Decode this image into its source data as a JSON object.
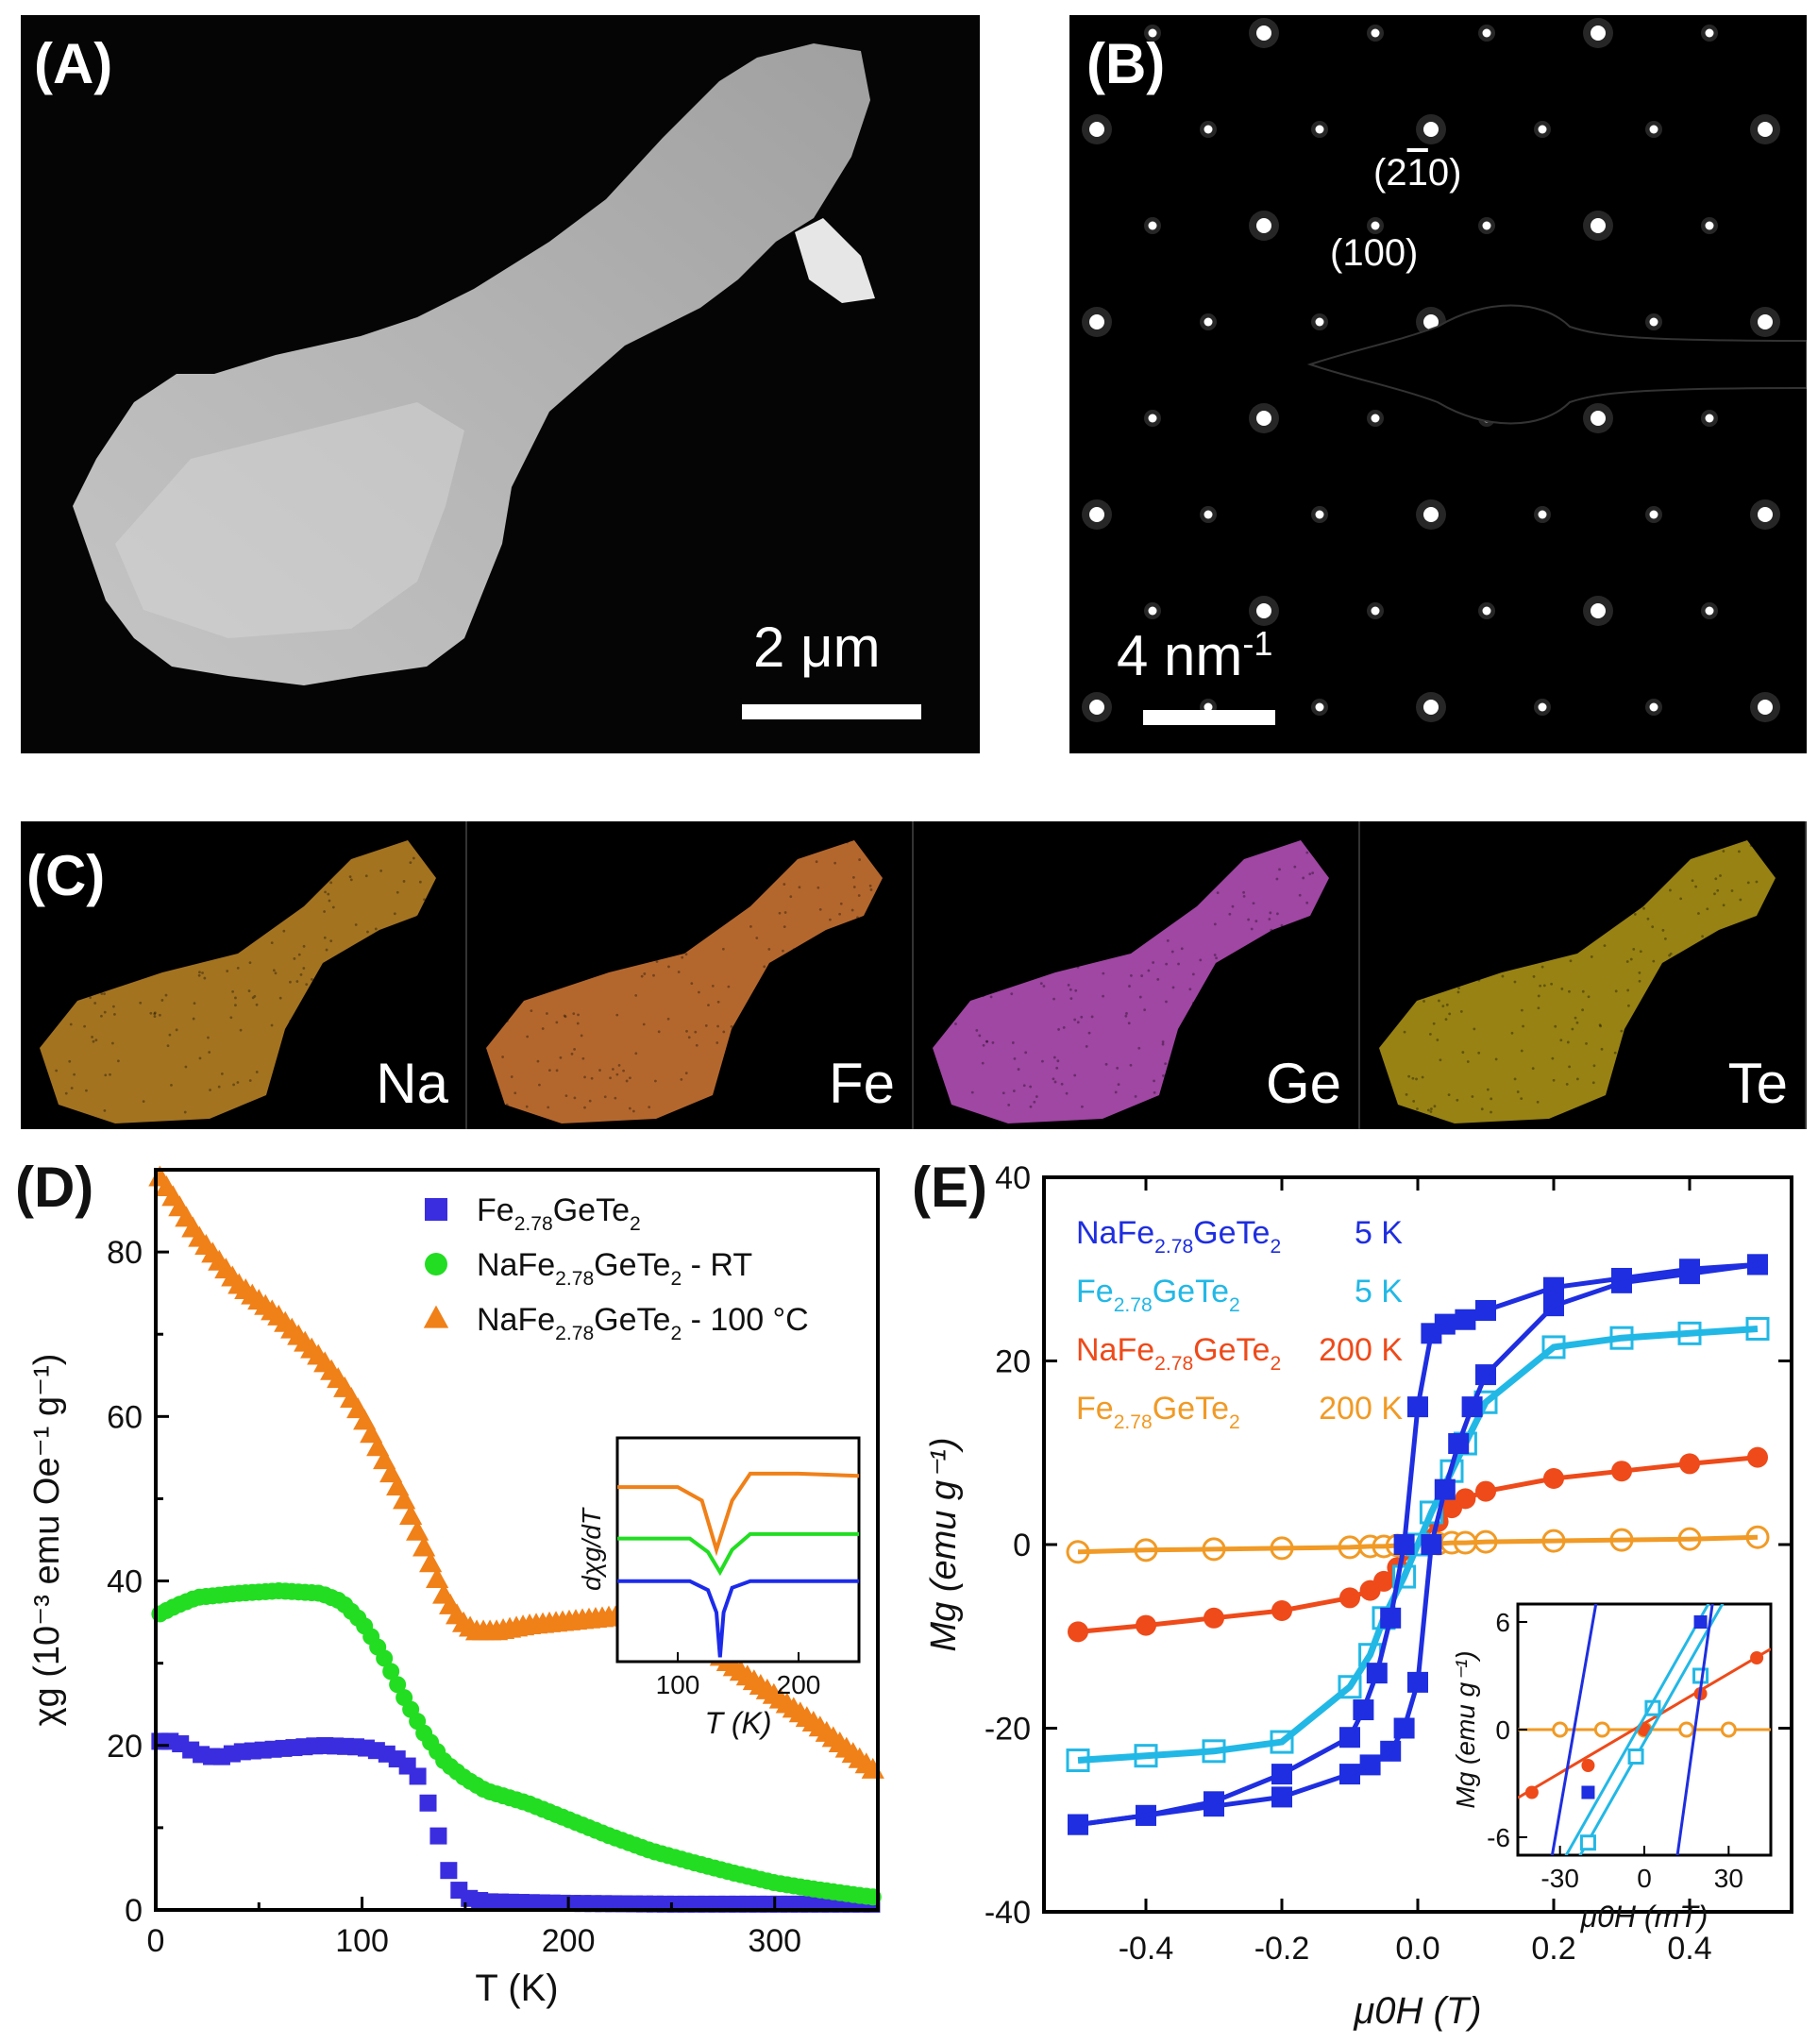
{
  "panel_a": {
    "letter": "(A)",
    "scale_label": "2 μm"
  },
  "panel_b": {
    "letter": "(B)",
    "miller_1": "(2",
    "miller_1_overbar": "1",
    "miller_1_end": "0)",
    "miller_2": "(100)",
    "scale_label": "4 nm",
    "scale_sup": "-1"
  },
  "panel_c": {
    "letter": "(C)",
    "elements": [
      {
        "name": "Na",
        "color": "#d99a2b"
      },
      {
        "name": "Fe",
        "color": "#f08a3c"
      },
      {
        "name": "Ge",
        "color": "#d65ed9"
      },
      {
        "name": "Te",
        "color": "#c9ad1a"
      }
    ]
  },
  "chart_data": [
    {
      "panel": "(D)",
      "type": "scatter",
      "xlabel": "T (K)",
      "ylabel": "χg (10⁻³ emu Oe⁻¹ g⁻¹)",
      "xlim": [
        0,
        350
      ],
      "ylim": [
        0,
        90
      ],
      "xticks": [
        0,
        100,
        200,
        300
      ],
      "yticks": [
        0,
        20,
        40,
        60,
        80
      ],
      "series": [
        {
          "name": "Fe2.78GeTe2",
          "label_parts": [
            "Fe",
            "2.78",
            "GeTe",
            "2",
            ""
          ],
          "color": "#3a2de0",
          "marker": "square",
          "points": [
            [
              2,
              20.5
            ],
            [
              10,
              20.5
            ],
            [
              20,
              19
            ],
            [
              30,
              18.5
            ],
            [
              40,
              19.2
            ],
            [
              60,
              19.6
            ],
            [
              80,
              20
            ],
            [
              100,
              19.8
            ],
            [
              110,
              19.2
            ],
            [
              120,
              18
            ],
            [
              128,
              16
            ],
            [
              132,
              13
            ],
            [
              136,
              10
            ],
            [
              140,
              6
            ],
            [
              145,
              3
            ],
            [
              150,
              1.5
            ],
            [
              160,
              1
            ],
            [
              200,
              0.8
            ],
            [
              250,
              0.7
            ],
            [
              300,
              0.7
            ],
            [
              350,
              0.7
            ]
          ]
        },
        {
          "name": "NaFe2.78GeTe2 - RT",
          "label_parts": [
            "NaFe",
            "2.78",
            "GeTe",
            "2",
            " - RT"
          ],
          "color": "#22dd22",
          "marker": "circle",
          "points": [
            [
              2,
              36
            ],
            [
              10,
              37
            ],
            [
              20,
              38
            ],
            [
              40,
              38.5
            ],
            [
              60,
              38.8
            ],
            [
              80,
              38.5
            ],
            [
              90,
              37.5
            ],
            [
              100,
              35
            ],
            [
              110,
              31
            ],
            [
              120,
              26
            ],
            [
              130,
              21.5
            ],
            [
              140,
              18
            ],
            [
              150,
              16
            ],
            [
              160,
              14.5
            ],
            [
              180,
              13
            ],
            [
              200,
              11
            ],
            [
              220,
              9
            ],
            [
              240,
              7.2
            ],
            [
              260,
              5.8
            ],
            [
              280,
              4.5
            ],
            [
              300,
              3.3
            ],
            [
              320,
              2.5
            ],
            [
              340,
              1.8
            ],
            [
              350,
              1.5
            ]
          ]
        },
        {
          "name": "NaFe2.78GeTe2 - 100 °C",
          "label_parts": [
            "NaFe",
            "2.78",
            "GeTe",
            "2",
            " - 100 °C"
          ],
          "color": "#f08018",
          "marker": "triangle",
          "points": [
            [
              2,
              89
            ],
            [
              10,
              86
            ],
            [
              20,
              82
            ],
            [
              30,
              79
            ],
            [
              40,
              76
            ],
            [
              50,
              74
            ],
            [
              60,
              72
            ],
            [
              70,
              69.5
            ],
            [
              80,
              67
            ],
            [
              90,
              64
            ],
            [
              100,
              60
            ],
            [
              110,
              55
            ],
            [
              120,
              50
            ],
            [
              130,
              44
            ],
            [
              140,
              38
            ],
            [
              148,
              35
            ],
            [
              155,
              33.8
            ],
            [
              165,
              33.8
            ],
            [
              180,
              34.5
            ],
            [
              200,
              35
            ],
            [
              220,
              35.5
            ],
            [
              240,
              35.5
            ],
            [
              260,
              33.5
            ],
            [
              280,
              29.5
            ],
            [
              300,
              26
            ],
            [
              320,
              22.5
            ],
            [
              340,
              18.5
            ],
            [
              350,
              16.5
            ]
          ]
        }
      ],
      "inset": {
        "xlabel": "T (K)",
        "ylabel": "dχg/dT",
        "xlim": [
          50,
          250
        ],
        "xticks": [
          100,
          200
        ],
        "curves": [
          {
            "color": "#f08018",
            "points": [
              [
                50,
                0.78
              ],
              [
                100,
                0.78
              ],
              [
                120,
                0.72
              ],
              [
                132,
                0.5
              ],
              [
                145,
                0.72
              ],
              [
                160,
                0.84
              ],
              [
                200,
                0.84
              ],
              [
                250,
                0.83
              ]
            ]
          },
          {
            "color": "#22dd22",
            "points": [
              [
                50,
                0.55
              ],
              [
                110,
                0.55
              ],
              [
                125,
                0.49
              ],
              [
                135,
                0.4
              ],
              [
                145,
                0.5
              ],
              [
                160,
                0.57
              ],
              [
                250,
                0.57
              ]
            ]
          },
          {
            "color": "#1c2bea",
            "points": [
              [
                50,
                0.36
              ],
              [
                110,
                0.36
              ],
              [
                125,
                0.32
              ],
              [
                132,
                0.22
              ],
              [
                135,
                0.02
              ],
              [
                138,
                0.22
              ],
              [
                145,
                0.33
              ],
              [
                160,
                0.36
              ],
              [
                250,
                0.36
              ]
            ]
          }
        ]
      }
    },
    {
      "panel": "(E)",
      "type": "line",
      "xlabel": "μ0H (T)",
      "ylabel": "Mg (emu g⁻¹)",
      "xlim": [
        -0.55,
        0.55
      ],
      "ylim": [
        -40,
        40
      ],
      "xticks": [
        -0.4,
        -0.2,
        0.0,
        0.2,
        0.4
      ],
      "yticks": [
        -40,
        -20,
        0,
        20,
        40
      ],
      "series": [
        {
          "name": "NaFe2.78GeTe2 5 K",
          "label_parts": [
            "NaFe",
            "2.78",
            "GeTe",
            "2"
          ],
          "temp": "5 K",
          "color": "#1e2ee0",
          "marker": "filled-square",
          "branch_down": [
            [
              0.5,
              30.5
            ],
            [
              0.4,
              30
            ],
            [
              0.3,
              29
            ],
            [
              0.2,
              28
            ],
            [
              0.1,
              25.5
            ],
            [
              0.07,
              24.5
            ],
            [
              0.04,
              24
            ],
            [
              0.02,
              23
            ],
            [
              0.0,
              15
            ],
            [
              -0.02,
              0
            ],
            [
              -0.04,
              -8
            ],
            [
              -0.06,
              -14
            ],
            [
              -0.08,
              -18
            ],
            [
              -0.1,
              -21
            ],
            [
              -0.2,
              -25
            ],
            [
              -0.3,
              -28
            ],
            [
              -0.4,
              -29.5
            ],
            [
              -0.5,
              -30.5
            ]
          ],
          "branch_up": [
            [
              -0.5,
              -30.5
            ],
            [
              -0.4,
              -29.5
            ],
            [
              -0.3,
              -28.5
            ],
            [
              -0.2,
              -27.5
            ],
            [
              -0.1,
              -25
            ],
            [
              -0.07,
              -24
            ],
            [
              -0.04,
              -22.5
            ],
            [
              -0.02,
              -20
            ],
            [
              0.0,
              -15
            ],
            [
              0.02,
              0
            ],
            [
              0.04,
              6
            ],
            [
              0.06,
              11
            ],
            [
              0.08,
              15
            ],
            [
              0.1,
              18.5
            ],
            [
              0.2,
              26
            ],
            [
              0.3,
              28.5
            ],
            [
              0.4,
              29.5
            ],
            [
              0.5,
              30.5
            ]
          ]
        },
        {
          "name": "Fe2.78GeTe2 5 K",
          "label_parts": [
            "Fe",
            "2.78",
            "GeTe",
            "2"
          ],
          "temp": "5 K",
          "color": "#22b8e6",
          "marker": "open-square",
          "points": [
            [
              -0.5,
              -23.5
            ],
            [
              -0.4,
              -23
            ],
            [
              -0.3,
              -22.5
            ],
            [
              -0.2,
              -21.5
            ],
            [
              -0.1,
              -15.5
            ],
            [
              -0.07,
              -12
            ],
            [
              -0.05,
              -8
            ],
            [
              -0.02,
              -3.5
            ],
            [
              0.0,
              0
            ],
            [
              0.02,
              3.5
            ],
            [
              0.05,
              8
            ],
            [
              0.07,
              11
            ],
            [
              0.1,
              15.5
            ],
            [
              0.2,
              21.5
            ],
            [
              0.3,
              22.5
            ],
            [
              0.4,
              23
            ],
            [
              0.5,
              23.5
            ]
          ]
        },
        {
          "name": "NaFe2.78GeTe2 200 K",
          "label_parts": [
            "NaFe",
            "2.78",
            "GeTe",
            "2"
          ],
          "temp": "200 K",
          "color": "#ee4a1a",
          "marker": "filled-circle",
          "points": [
            [
              -0.5,
              -9.5
            ],
            [
              -0.4,
              -8.8
            ],
            [
              -0.3,
              -8
            ],
            [
              -0.2,
              -7.2
            ],
            [
              -0.1,
              -5.8
            ],
            [
              -0.07,
              -5
            ],
            [
              -0.05,
              -4
            ],
            [
              -0.03,
              -2.5
            ],
            [
              0.0,
              0
            ],
            [
              0.03,
              2.5
            ],
            [
              0.05,
              4
            ],
            [
              0.07,
              5
            ],
            [
              0.1,
              5.8
            ],
            [
              0.2,
              7.2
            ],
            [
              0.3,
              8
            ],
            [
              0.4,
              8.8
            ],
            [
              0.5,
              9.5
            ]
          ]
        },
        {
          "name": "Fe2.78GeTe2 200 K",
          "label_parts": [
            "Fe",
            "2.78",
            "GeTe",
            "2"
          ],
          "temp": "200 K",
          "color": "#f19a25",
          "marker": "open-circle",
          "points": [
            [
              -0.5,
              -0.8
            ],
            [
              -0.4,
              -0.6
            ],
            [
              -0.3,
              -0.5
            ],
            [
              -0.2,
              -0.4
            ],
            [
              -0.1,
              -0.3
            ],
            [
              -0.07,
              -0.2
            ],
            [
              -0.05,
              -0.2
            ],
            [
              -0.03,
              -0.1
            ],
            [
              0.0,
              0
            ],
            [
              0.03,
              0.1
            ],
            [
              0.05,
              0.2
            ],
            [
              0.07,
              0.2
            ],
            [
              0.1,
              0.3
            ],
            [
              0.2,
              0.4
            ],
            [
              0.3,
              0.5
            ],
            [
              0.4,
              0.6
            ],
            [
              0.5,
              0.8
            ]
          ]
        }
      ],
      "inset": {
        "xlabel": "μ0H (mT)",
        "ylabel": "Mg (emu g⁻¹)",
        "xlim": [
          -45,
          45
        ],
        "ylim": [
          -7,
          7
        ],
        "xticks": [
          -30,
          0,
          30
        ],
        "yticks": [
          -6,
          0,
          6
        ]
      }
    }
  ]
}
